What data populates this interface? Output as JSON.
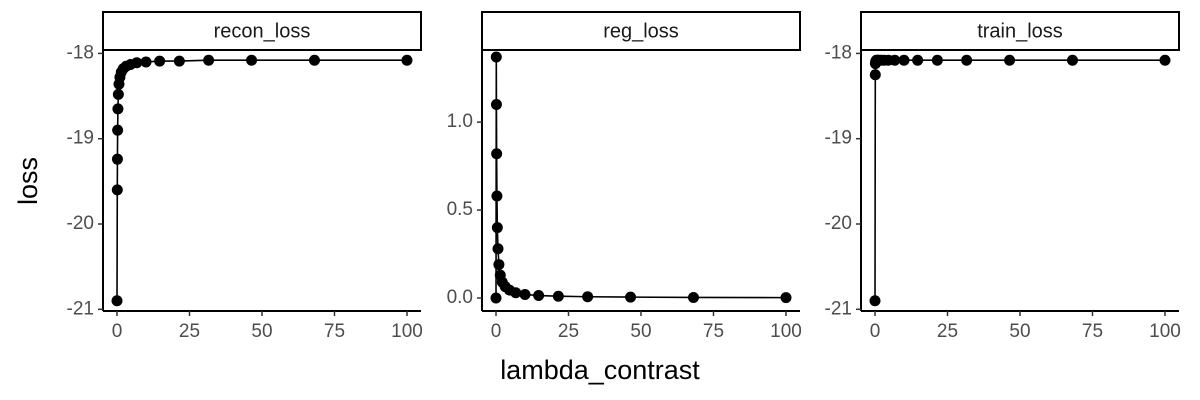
{
  "axes": {
    "x_label": "lambda_contrast",
    "y_label": "loss"
  },
  "chart_data": [
    {
      "type": "line",
      "title": "recon_loss",
      "color": "#000000",
      "x": [
        0,
        0.1,
        0.147,
        0.215,
        0.316,
        0.464,
        0.681,
        1,
        1.47,
        2.15,
        3.16,
        4.64,
        6.81,
        10,
        14.7,
        21.5,
        31.6,
        46.4,
        68.1,
        100
      ],
      "values": [
        -20.9,
        -19.6,
        -19.24,
        -18.9,
        -18.65,
        -18.48,
        -18.36,
        -18.28,
        -18.22,
        -18.18,
        -18.15,
        -18.13,
        -18.11,
        -18.1,
        -18.09,
        -18.09,
        -18.08,
        -18.08,
        -18.08,
        -18.08
      ],
      "xlim": [
        -4.83,
        104.83
      ],
      "ylim": [
        -21.02,
        -17.96
      ],
      "xticks": [
        0,
        25,
        50,
        75,
        100
      ],
      "yticks": [
        -21,
        -20,
        -19,
        -18
      ]
    },
    {
      "type": "line",
      "title": "reg_loss",
      "color": "#000000",
      "x": [
        0,
        0.1,
        0.147,
        0.215,
        0.316,
        0.464,
        0.681,
        1,
        1.47,
        2.15,
        3.16,
        4.64,
        6.81,
        10,
        14.7,
        21.5,
        31.6,
        46.4,
        68.1,
        100
      ],
      "values": [
        0,
        1.37,
        1.1,
        0.82,
        0.58,
        0.4,
        0.28,
        0.19,
        0.13,
        0.09,
        0.065,
        0.045,
        0.03,
        0.02,
        0.014,
        0.01,
        0.007,
        0.005,
        0.003,
        0.002
      ],
      "xlim": [
        -4.83,
        104.83
      ],
      "ylim": [
        -0.074,
        1.41
      ],
      "xticks": [
        0,
        25,
        50,
        75,
        100
      ],
      "yticks": [
        {
          "value": 0,
          "label": "0.0"
        },
        0.5,
        {
          "value": 1,
          "label": "1.0"
        }
      ]
    },
    {
      "type": "line",
      "title": "train_loss",
      "color": "#000000",
      "x": [
        0,
        0.1,
        0.147,
        0.215,
        0.316,
        0.464,
        0.681,
        1,
        1.47,
        2.15,
        3.16,
        4.64,
        6.81,
        10,
        14.7,
        21.5,
        31.6,
        46.4,
        68.1,
        100
      ],
      "values": [
        -20.9,
        -18.25,
        -18.12,
        -18.1,
        -18.09,
        -18.08,
        -18.08,
        -18.08,
        -18.08,
        -18.08,
        -18.08,
        -18.08,
        -18.08,
        -18.08,
        -18.08,
        -18.08,
        -18.08,
        -18.08,
        -18.08,
        -18.08
      ],
      "xlim": [
        -4.83,
        104.83
      ],
      "ylim": [
        -21.02,
        -17.96
      ],
      "xticks": [
        0,
        25,
        50,
        75,
        100
      ],
      "yticks": [
        -21,
        -20,
        -19,
        -18
      ]
    }
  ]
}
